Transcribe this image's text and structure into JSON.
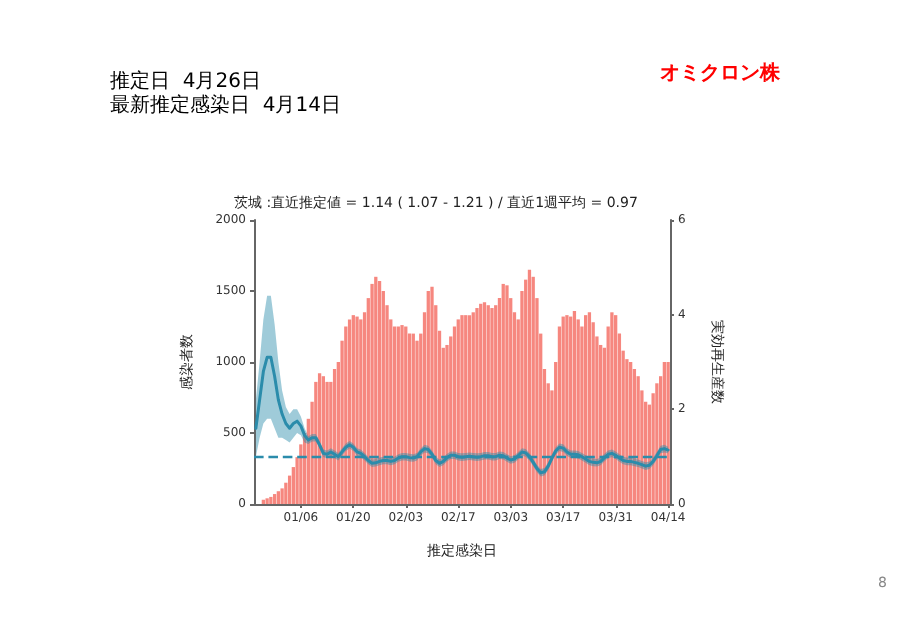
{
  "chart_data": {
    "type": "bar",
    "title": "推定日  4月26日",
    "subtitle": "最新推定感染日  4月14日",
    "annotations": [
      "茨城 :直近推定値 = 1.14 ( 1.07 - 1.21 ) / 直近1週平均 = 0.97",
      "オミクロン株",
      "8"
    ],
    "xlabel": "推定感染日",
    "ylabel": "感染者数",
    "y2label": "実効再生産数",
    "categories": [
      null,
      null,
      null,
      null,
      null,
      null,
      null,
      null,
      null,
      null,
      null,
      null,
      "01/06",
      null,
      null,
      null,
      null,
      null,
      null,
      null,
      null,
      null,
      null,
      null,
      null,
      null,
      "01/20",
      null,
      null,
      null,
      null,
      null,
      null,
      null,
      null,
      null,
      null,
      null,
      null,
      null,
      "02/03",
      null,
      null,
      null,
      null,
      null,
      null,
      null,
      null,
      null,
      null,
      null,
      null,
      null,
      "02/17",
      null,
      null,
      null,
      null,
      null,
      null,
      null,
      null,
      null,
      null,
      null,
      null,
      null,
      "03/03",
      null,
      null,
      null,
      null,
      null,
      null,
      null,
      null,
      null,
      null,
      null,
      null,
      null,
      "03/17",
      null,
      null,
      null,
      null,
      null,
      null,
      null,
      null,
      null,
      null,
      null,
      null,
      null,
      "03/31",
      null,
      null,
      null,
      null,
      null,
      null,
      null,
      null,
      null,
      null,
      null,
      null,
      null,
      "04/14"
    ],
    "series": [
      {
        "color": "#f6877f",
        "values": [
          null,
          null,
          30,
          40,
          50,
          70,
          90,
          110,
          150,
          200,
          260,
          330,
          420,
          500,
          600,
          720,
          860,
          920,
          900,
          860,
          860,
          950,
          1000,
          1150,
          1250,
          1300,
          1330,
          1320,
          1300,
          1350,
          1450,
          1550,
          1600,
          1570,
          1500,
          1400,
          1300,
          1250,
          1250,
          1260,
          1250,
          1200,
          1200,
          1150,
          1200,
          1350,
          1500,
          1530,
          1400,
          1220,
          1100,
          1120,
          1180,
          1250,
          1300,
          1330,
          1330,
          1330,
          1350,
          1380,
          1410,
          1420,
          1400,
          1380,
          1400,
          1450,
          1550,
          1540,
          1450,
          1350,
          1300,
          1500,
          1580,
          1650,
          1600,
          1450,
          1200,
          950,
          850,
          800,
          1000,
          1250,
          1320,
          1330,
          1320,
          1360,
          1300,
          1250,
          1330,
          1350,
          1280,
          1180,
          1120,
          1100,
          1250,
          1350,
          1330,
          1200,
          1080,
          1020,
          1000,
          950,
          900,
          800,
          720,
          700,
          780,
          850,
          900,
          1000,
          1000
        ]
      },
      {
        "type": "line",
        "axis": "y2",
        "color": "#2b8cab",
        "values": [
          1.6,
          2.2,
          2.8,
          3.1,
          3.1,
          2.7,
          2.2,
          1.9,
          1.7,
          1.6,
          1.7,
          1.75,
          1.65,
          1.45,
          1.35,
          1.4,
          1.4,
          1.25,
          1.07,
          1.05,
          1.1,
          1.05,
          1.0,
          1.1,
          1.2,
          1.25,
          1.2,
          1.1,
          1.07,
          1.0,
          0.92,
          0.86,
          0.87,
          0.9,
          0.92,
          0.92,
          0.9,
          0.92,
          0.97,
          1.0,
          1.0,
          0.98,
          0.97,
          1.0,
          1.1,
          1.17,
          1.15,
          1.05,
          0.92,
          0.86,
          0.9,
          0.98,
          1.03,
          1.03,
          1.0,
          0.99,
          1.0,
          1.01,
          1.0,
          0.99,
          1.0,
          1.02,
          1.02,
          1.0,
          1.0,
          1.03,
          1.02,
          0.97,
          0.93,
          0.95,
          1.02,
          1.1,
          1.08,
          1.0,
          0.88,
          0.75,
          0.66,
          0.68,
          0.8,
          0.97,
          1.12,
          1.2,
          1.18,
          1.1,
          1.05,
          1.05,
          1.04,
          1.0,
          0.95,
          0.9,
          0.88,
          0.87,
          0.9,
          0.98,
          1.05,
          1.07,
          1.03,
          0.97,
          0.92,
          0.9,
          0.9,
          0.88,
          0.86,
          0.83,
          0.8,
          0.82,
          0.9,
          1.02,
          1.15,
          1.17,
          1.14
        ],
        "lower": [
          1.0,
          1.4,
          1.7,
          1.8,
          1.8,
          1.6,
          1.4,
          1.4,
          1.35,
          1.3,
          1.4,
          1.5,
          1.45,
          1.3,
          1.27,
          1.32,
          1.32,
          1.17,
          0.99,
          0.97,
          1.02,
          0.97,
          0.92,
          1.02,
          1.12,
          1.17,
          1.12,
          1.02,
          0.99,
          0.92,
          0.84,
          0.78,
          0.79,
          0.82,
          0.84,
          0.84,
          0.82,
          0.84,
          0.89,
          0.92,
          0.92,
          0.9,
          0.89,
          0.92,
          1.02,
          1.09,
          1.07,
          0.97,
          0.84,
          0.78,
          0.82,
          0.9,
          0.95,
          0.95,
          0.92,
          0.91,
          0.92,
          0.93,
          0.92,
          0.91,
          0.92,
          0.94,
          0.94,
          0.92,
          0.92,
          0.95,
          0.94,
          0.89,
          0.85,
          0.87,
          0.94,
          1.02,
          1.0,
          0.92,
          0.8,
          0.67,
          0.58,
          0.6,
          0.72,
          0.89,
          1.04,
          1.12,
          1.1,
          1.02,
          0.97,
          0.97,
          0.96,
          0.92,
          0.87,
          0.82,
          0.8,
          0.79,
          0.82,
          0.9,
          0.97,
          0.99,
          0.95,
          0.89,
          0.84,
          0.82,
          0.82,
          0.8,
          0.78,
          0.75,
          0.72,
          0.74,
          0.82,
          0.94,
          1.07,
          1.09,
          1.07
        ],
        "upper": [
          2.2,
          3.0,
          3.9,
          4.4,
          4.4,
          3.8,
          3.0,
          2.4,
          2.05,
          1.9,
          2.0,
          2.0,
          1.85,
          1.6,
          1.43,
          1.48,
          1.48,
          1.33,
          1.15,
          1.13,
          1.18,
          1.13,
          1.08,
          1.18,
          1.28,
          1.33,
          1.28,
          1.18,
          1.15,
          1.08,
          1.0,
          0.94,
          0.95,
          0.98,
          1.0,
          1.0,
          0.98,
          1.0,
          1.05,
          1.08,
          1.08,
          1.06,
          1.05,
          1.08,
          1.18,
          1.25,
          1.23,
          1.13,
          1.0,
          0.94,
          0.98,
          1.06,
          1.11,
          1.11,
          1.08,
          1.07,
          1.08,
          1.09,
          1.08,
          1.07,
          1.08,
          1.1,
          1.1,
          1.08,
          1.08,
          1.11,
          1.1,
          1.05,
          1.01,
          1.03,
          1.1,
          1.18,
          1.16,
          1.08,
          0.96,
          0.83,
          0.74,
          0.76,
          0.88,
          1.05,
          1.2,
          1.28,
          1.26,
          1.18,
          1.13,
          1.13,
          1.12,
          1.08,
          1.03,
          0.98,
          0.96,
          0.95,
          0.98,
          1.06,
          1.13,
          1.15,
          1.11,
          1.05,
          1.0,
          0.98,
          0.98,
          0.96,
          0.94,
          0.91,
          0.88,
          0.9,
          0.98,
          1.1,
          1.23,
          1.25,
          1.21
        ]
      }
    ],
    "ylim": [
      0,
      2000
    ],
    "yticks": [
      0,
      500,
      1000,
      1500,
      2000
    ],
    "y2lim": [
      0,
      6
    ],
    "y2ticks": [
      0,
      2,
      4,
      6
    ],
    "ref_lines": [
      {
        "axis": "y2",
        "value": 1,
        "line_style": "dashed",
        "color": "#2b8cab"
      }
    ],
    "marker": "none",
    "line_style": "solid",
    "grid": false
  }
}
